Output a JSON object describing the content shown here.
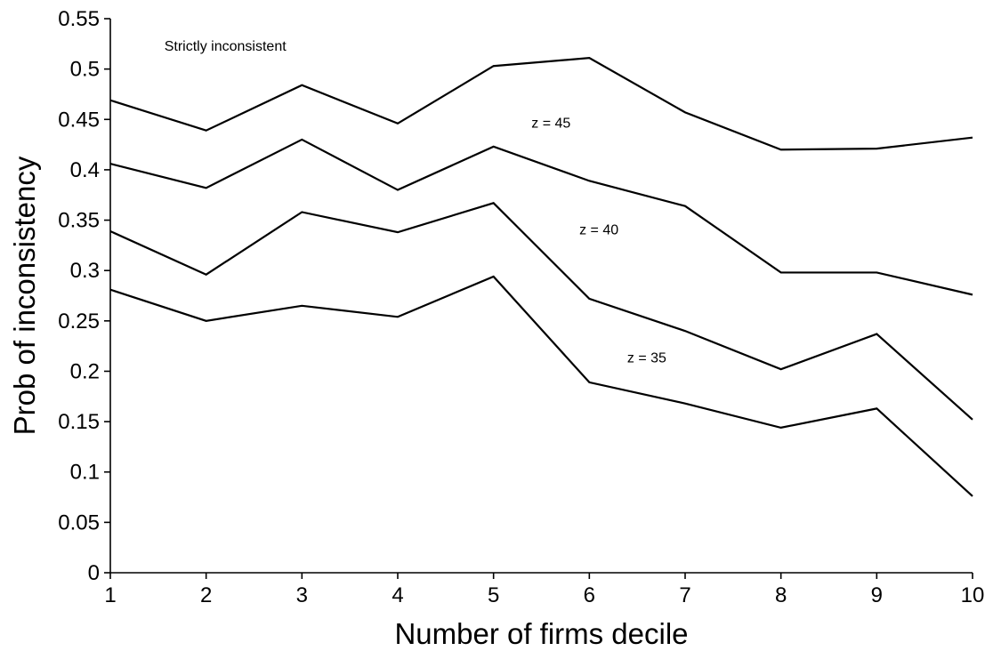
{
  "chart_data": {
    "type": "line",
    "xlabel": "Number of firms decile",
    "ylabel": "Prob of inconsistency",
    "xlim": [
      1,
      10
    ],
    "ylim": [
      0,
      0.55
    ],
    "x": [
      1,
      2,
      3,
      4,
      5,
      6,
      7,
      8,
      9,
      10
    ],
    "x_ticks": [
      "1",
      "2",
      "3",
      "4",
      "5",
      "6",
      "7",
      "8",
      "9",
      "10"
    ],
    "y_ticks": [
      "0",
      "0.05",
      "0.1",
      "0.15",
      "0.2",
      "0.25",
      "0.3",
      "0.35",
      "0.4",
      "0.45",
      "0.5",
      "0.55"
    ],
    "grid": false,
    "legend": "none",
    "series": [
      {
        "values": [
          0.469,
          0.439,
          0.484,
          0.446,
          0.503,
          0.511,
          0.457,
          0.42,
          0.421,
          0.432
        ]
      },
      {
        "values": [
          0.406,
          0.382,
          0.43,
          0.38,
          0.423,
          0.389,
          0.364,
          0.298,
          0.298,
          0.276
        ]
      },
      {
        "values": [
          0.339,
          0.296,
          0.358,
          0.338,
          0.367,
          0.272,
          0.24,
          0.202,
          0.237,
          0.152
        ]
      },
      {
        "values": [
          0.281,
          0.25,
          0.265,
          0.254,
          0.294,
          0.189,
          0.168,
          0.144,
          0.163,
          0.076
        ]
      }
    ],
    "annotations": [
      {
        "text": "Strictly inconsistent",
        "x": 2.2,
        "y": 0.518
      },
      {
        "text": "z = 45",
        "x": 5.6,
        "y": 0.442
      },
      {
        "text": "z = 40",
        "x": 6.1,
        "y": 0.336
      },
      {
        "text": "z = 35",
        "x": 6.6,
        "y": 0.209
      }
    ]
  }
}
